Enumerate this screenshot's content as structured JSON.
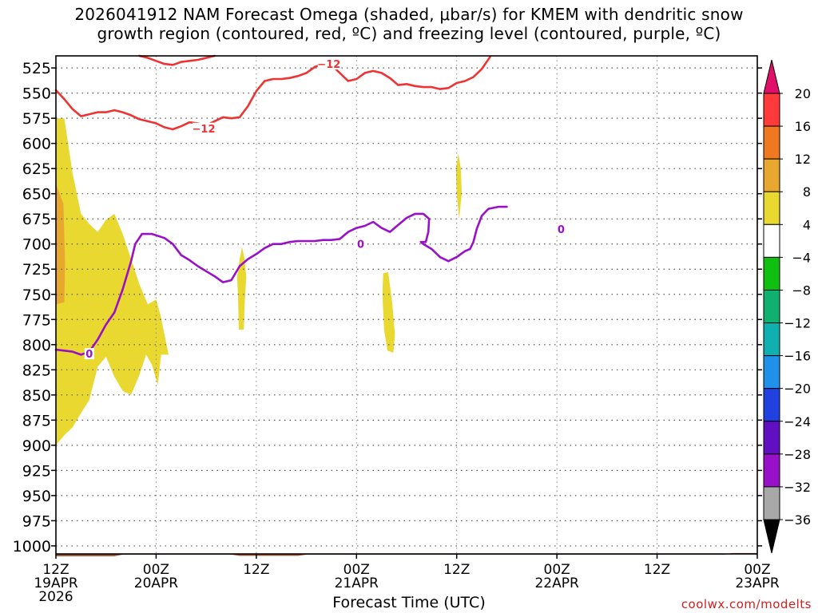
{
  "title_line1": "2026041912 NAM Forecast Omega (shaded, μbar/s) for KMEM with dendritic snow",
  "title_line2": "growth region (contoured, red, ºC) and freezing level (contoured, purple, ºC)",
  "credit": "coolwx.com/modelts",
  "chart_data": {
    "type": "area",
    "xlabel": "Forecast Time (UTC)",
    "x_ticks": [
      {
        "hour": 0,
        "label1": "12Z",
        "label2": "19APR",
        "label3": "2026"
      },
      {
        "hour": 12,
        "label1": "00Z",
        "label2": "20APR",
        "label3": ""
      },
      {
        "hour": 24,
        "label1": "12Z",
        "label2": "",
        "label3": ""
      },
      {
        "hour": 36,
        "label1": "00Z",
        "label2": "21APR",
        "label3": ""
      },
      {
        "hour": 48,
        "label1": "12Z",
        "label2": "",
        "label3": ""
      },
      {
        "hour": 60,
        "label1": "00Z",
        "label2": "22APR",
        "label3": ""
      },
      {
        "hour": 72,
        "label1": "12Z",
        "label2": "",
        "label3": ""
      },
      {
        "hour": 84,
        "label1": "00Z",
        "label2": "23APR",
        "label3": ""
      }
    ],
    "x_range_hours": [
      0,
      84
    ],
    "y_axis_label": "",
    "y_ticks": [
      525,
      550,
      575,
      600,
      625,
      650,
      675,
      700,
      725,
      750,
      775,
      800,
      825,
      850,
      875,
      900,
      925,
      950,
      975,
      1000
    ],
    "y_range_mb": [
      513,
      1008
    ],
    "grid": true,
    "colorbar": {
      "labels": [
        "20",
        "16",
        "12",
        "8",
        "4",
        "−4",
        "−8",
        "−12",
        "−16",
        "−20",
        "−24",
        "−28",
        "−32",
        "−36"
      ],
      "colors": [
        "#ff3a3a",
        "#f07820",
        "#e8a830",
        "#e8d830",
        "#ffffff",
        "#10c010",
        "#10b070",
        "#10b0b0",
        "#2090e8",
        "#2040e0",
        "#6010c0",
        "#9810c8",
        "#a8a8a8"
      ],
      "top_arrow_color": "#e0106a",
      "bottom_arrow_color": "#000000"
    },
    "series": [
      {
        "name": "-12",
        "color": "#ee3333",
        "segments": [
          [
            [
              0,
              547
            ],
            [
              1,
              556
            ],
            [
              2,
              566
            ],
            [
              3,
              573
            ],
            [
              4,
              571
            ],
            [
              5,
              569
            ],
            [
              6,
              569
            ],
            [
              7,
              567
            ],
            [
              8,
              569
            ],
            [
              9,
              572
            ],
            [
              10,
              576
            ],
            [
              11,
              578
            ],
            [
              12,
              580
            ],
            [
              13,
              584
            ],
            [
              14,
              586
            ],
            [
              15,
              583
            ],
            [
              16,
              579
            ],
            [
              17,
              580
            ],
            [
              18,
              582
            ],
            [
              19,
              578
            ],
            [
              20,
              574
            ],
            [
              21,
              575
            ],
            [
              22,
              574
            ],
            [
              23,
              563
            ],
            [
              24,
              548
            ],
            [
              25,
              538
            ],
            [
              26,
              536
            ],
            [
              27,
              536
            ],
            [
              28,
              535
            ],
            [
              29,
              533
            ],
            [
              30,
              530
            ],
            [
              31,
              524
            ],
            [
              32,
              521
            ]
          ],
          [
            [
              32,
              521
            ],
            [
              33,
              522
            ],
            [
              34,
              530
            ],
            [
              35,
              538
            ],
            [
              36,
              536
            ],
            [
              37,
              530
            ],
            [
              38,
              528
            ],
            [
              39,
              530
            ],
            [
              40,
              535
            ],
            [
              41,
              542
            ],
            [
              42,
              541
            ],
            [
              43,
              543
            ],
            [
              44,
              544
            ],
            [
              45,
              544
            ],
            [
              46,
              546
            ],
            [
              47,
              545
            ],
            [
              48,
              540
            ],
            [
              49,
              538
            ],
            [
              50,
              534
            ],
            [
              51,
              526
            ],
            [
              52,
              514
            ]
          ],
          [
            [
              10,
              513
            ],
            [
              11,
              515
            ],
            [
              12,
              518
            ],
            [
              13,
              521
            ],
            [
              14,
              522
            ],
            [
              15,
              519
            ],
            [
              16,
              518
            ],
            [
              17,
              517
            ],
            [
              18,
              515
            ],
            [
              19,
              513
            ]
          ]
        ],
        "labels": [
          {
            "x": 17.7,
            "y": 585,
            "text": "−12"
          },
          {
            "x": 32.7,
            "y": 521,
            "text": "−12"
          }
        ]
      },
      {
        "name": "0",
        "color": "#9a10c8",
        "segments": [
          [
            [
              0,
              805
            ],
            [
              2,
              807
            ],
            [
              3,
              810
            ],
            [
              4,
              807
            ],
            [
              5,
              795
            ],
            [
              6,
              780
            ],
            [
              7,
              768
            ],
            [
              8,
              745
            ],
            [
              9,
              717
            ],
            [
              9.5,
              700
            ],
            [
              10.3,
              690
            ],
            [
              11.5,
              690
            ],
            [
              13,
              694
            ],
            [
              14,
              700
            ],
            [
              15,
              711
            ],
            [
              16,
              716
            ],
            [
              17,
              722
            ],
            [
              18,
              727
            ],
            [
              19,
              732
            ],
            [
              20,
              738
            ],
            [
              21,
              736
            ],
            [
              22,
              722
            ],
            [
              23,
              715
            ],
            [
              24,
              710
            ],
            [
              25,
              704
            ],
            [
              26,
              700
            ],
            [
              27,
              700
            ],
            [
              28,
              698
            ],
            [
              29,
              697
            ],
            [
              30,
              697
            ],
            [
              31,
              697
            ],
            [
              32,
              696
            ],
            [
              33,
              696
            ],
            [
              34,
              695
            ],
            [
              35,
              688
            ],
            [
              36,
              684
            ],
            [
              37,
              682
            ],
            [
              38,
              678
            ],
            [
              39,
              684
            ],
            [
              40,
              688
            ],
            [
              41,
              681
            ],
            [
              42,
              674
            ],
            [
              43,
              670
            ],
            [
              44,
              670
            ],
            [
              44.7,
              675
            ],
            [
              44.6,
              688
            ],
            [
              44.3,
              698
            ],
            [
              43.7,
              698
            ],
            [
              44,
              700
            ],
            [
              45,
              705
            ],
            [
              46,
              713
            ],
            [
              47,
              717
            ],
            [
              48,
              713
            ],
            [
              49,
              707
            ],
            [
              49.6,
              705
            ],
            [
              50,
              698
            ],
            [
              50.4,
              685
            ],
            [
              51,
              672
            ],
            [
              51.8,
              665
            ],
            [
              53,
              663
            ],
            [
              54,
              663
            ]
          ]
        ],
        "labels": [
          {
            "x": 4,
            "y": 809,
            "text": "0"
          },
          {
            "x": 36.5,
            "y": 700,
            "text": "0"
          },
          {
            "x": 60.5,
            "y": 685,
            "text": "0"
          }
        ]
      }
    ],
    "shaded_regions": [
      {
        "color": "#e8d830",
        "value_range": [
          4,
          8
        ],
        "outline_hours_mb": [
          [
            0,
            575
          ],
          [
            1,
            575
          ],
          [
            2,
            630
          ],
          [
            3,
            670
          ],
          [
            4,
            680
          ],
          [
            5,
            688
          ],
          [
            6,
            676
          ],
          [
            7,
            670
          ],
          [
            8,
            690
          ],
          [
            9,
            715
          ],
          [
            10,
            740
          ],
          [
            11,
            760
          ],
          [
            12,
            755
          ],
          [
            12.5,
            770
          ],
          [
            13,
            790
          ],
          [
            13.5,
            810
          ],
          [
            12.6,
            810
          ],
          [
            12.2,
            840
          ],
          [
            11.5,
            820
          ],
          [
            10.8,
            810
          ],
          [
            10,
            830
          ],
          [
            9,
            850
          ],
          [
            8,
            846
          ],
          [
            7,
            832
          ],
          [
            6,
            812
          ],
          [
            5,
            822
          ],
          [
            4,
            855
          ],
          [
            3,
            868
          ],
          [
            2,
            882
          ],
          [
            1,
            890
          ],
          [
            0,
            900
          ]
        ]
      },
      {
        "color": "#e8a830",
        "value_range": [
          8,
          12
        ],
        "outline_hours_mb": [
          [
            0,
            640
          ],
          [
            0.9,
            660
          ],
          [
            1.1,
            720
          ],
          [
            1,
            758
          ],
          [
            0,
            760
          ]
        ]
      },
      {
        "color": "#e8d830",
        "value_range": [
          4,
          8
        ],
        "outline_hours_mb": [
          [
            22.3,
            703
          ],
          [
            22.6,
            715
          ],
          [
            22.8,
            733
          ],
          [
            22.6,
            760
          ],
          [
            22.5,
            785
          ],
          [
            21.9,
            785
          ],
          [
            21.8,
            750
          ],
          [
            21.7,
            733
          ],
          [
            22,
            715
          ]
        ]
      },
      {
        "color": "#e8d830",
        "value_range": [
          4,
          8
        ],
        "outline_hours_mb": [
          [
            39.2,
            729
          ],
          [
            39.8,
            728
          ],
          [
            40.3,
            760
          ],
          [
            40.6,
            790
          ],
          [
            40.4,
            808
          ],
          [
            39.7,
            806
          ],
          [
            39.3,
            785
          ],
          [
            39.1,
            750
          ]
        ]
      },
      {
        "color": "#e8d830",
        "value_range": [
          4,
          8
        ],
        "outline_hours_mb": [
          [
            48.2,
            610
          ],
          [
            48.5,
            625
          ],
          [
            48.6,
            650
          ],
          [
            48.3,
            675
          ],
          [
            48,
            650
          ],
          [
            47.9,
            625
          ]
        ]
      }
    ]
  }
}
